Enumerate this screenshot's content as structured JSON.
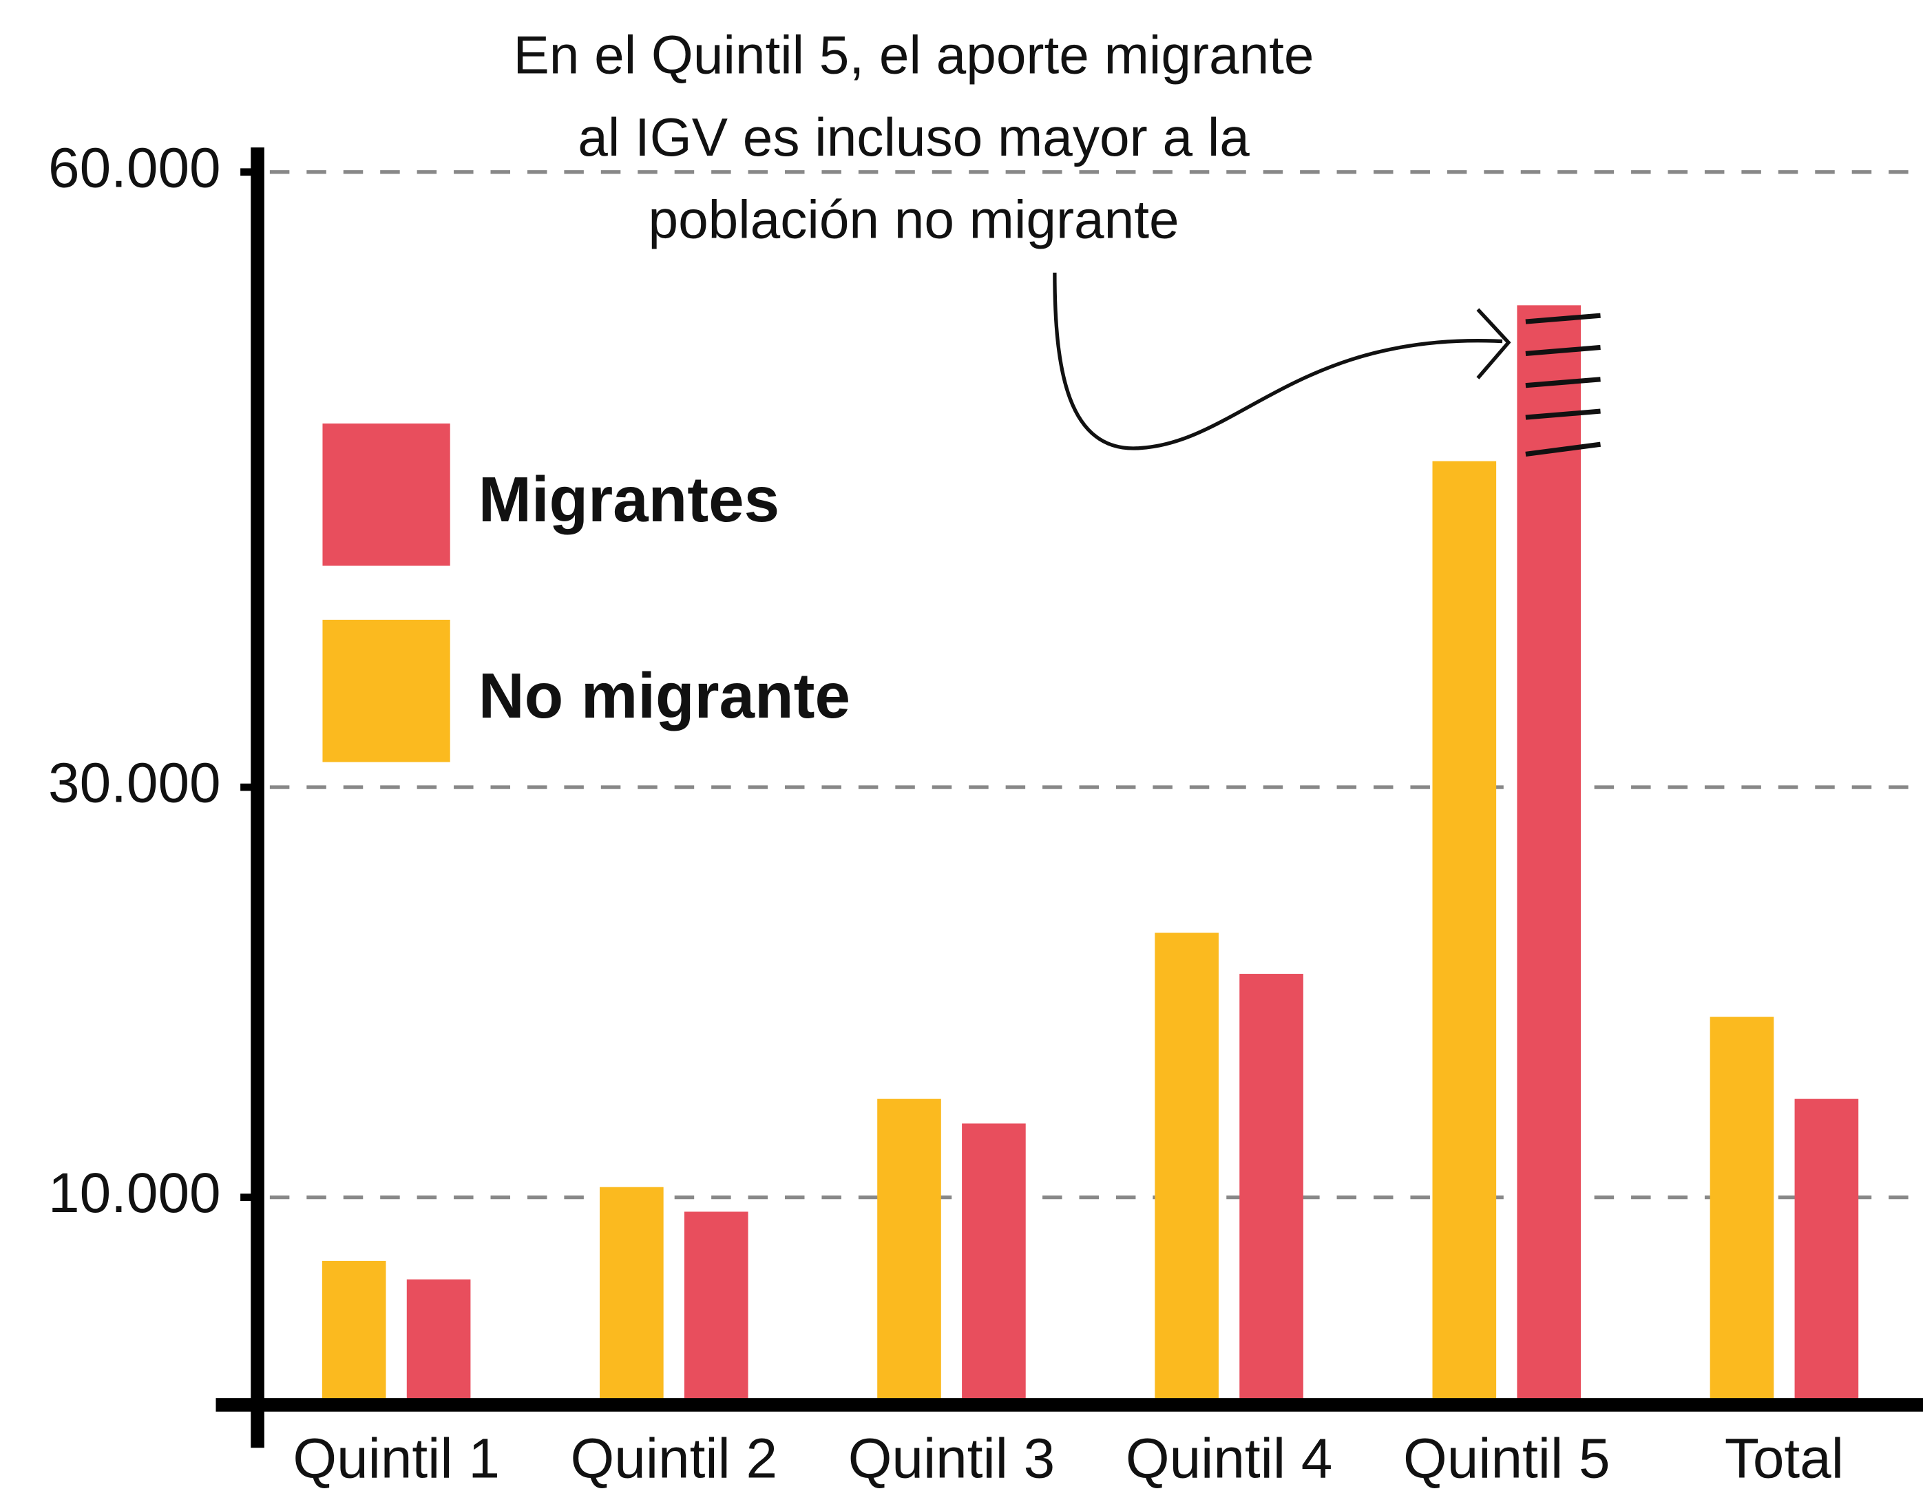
{
  "chart_data": {
    "type": "bar",
    "annotation": [
      "En el Quintil 5, el aporte migrante",
      "al IGV es incluso mayor a la",
      "población no migrante"
    ],
    "categories": [
      "Quintil 1",
      "Quintil 2",
      "Quintil 3",
      "Quintil 4",
      "Quintil 5",
      "Total"
    ],
    "series": [
      {
        "name": "No migrante",
        "color": "#FBBA1F",
        "values": [
          6900,
          10500,
          14800,
          22900,
          45900,
          18800
        ]
      },
      {
        "name": "Migrantes",
        "color": "#E84E5D",
        "values": [
          6000,
          9300,
          13600,
          20900,
          53500,
          14800
        ]
      }
    ],
    "ylim": [
      0,
      60000
    ],
    "yticks": [
      {
        "value": 10000,
        "label": "10.000"
      },
      {
        "value": 30000,
        "label": "30.000"
      },
      {
        "value": 60000,
        "label": "60.000"
      }
    ],
    "grid": true
  }
}
